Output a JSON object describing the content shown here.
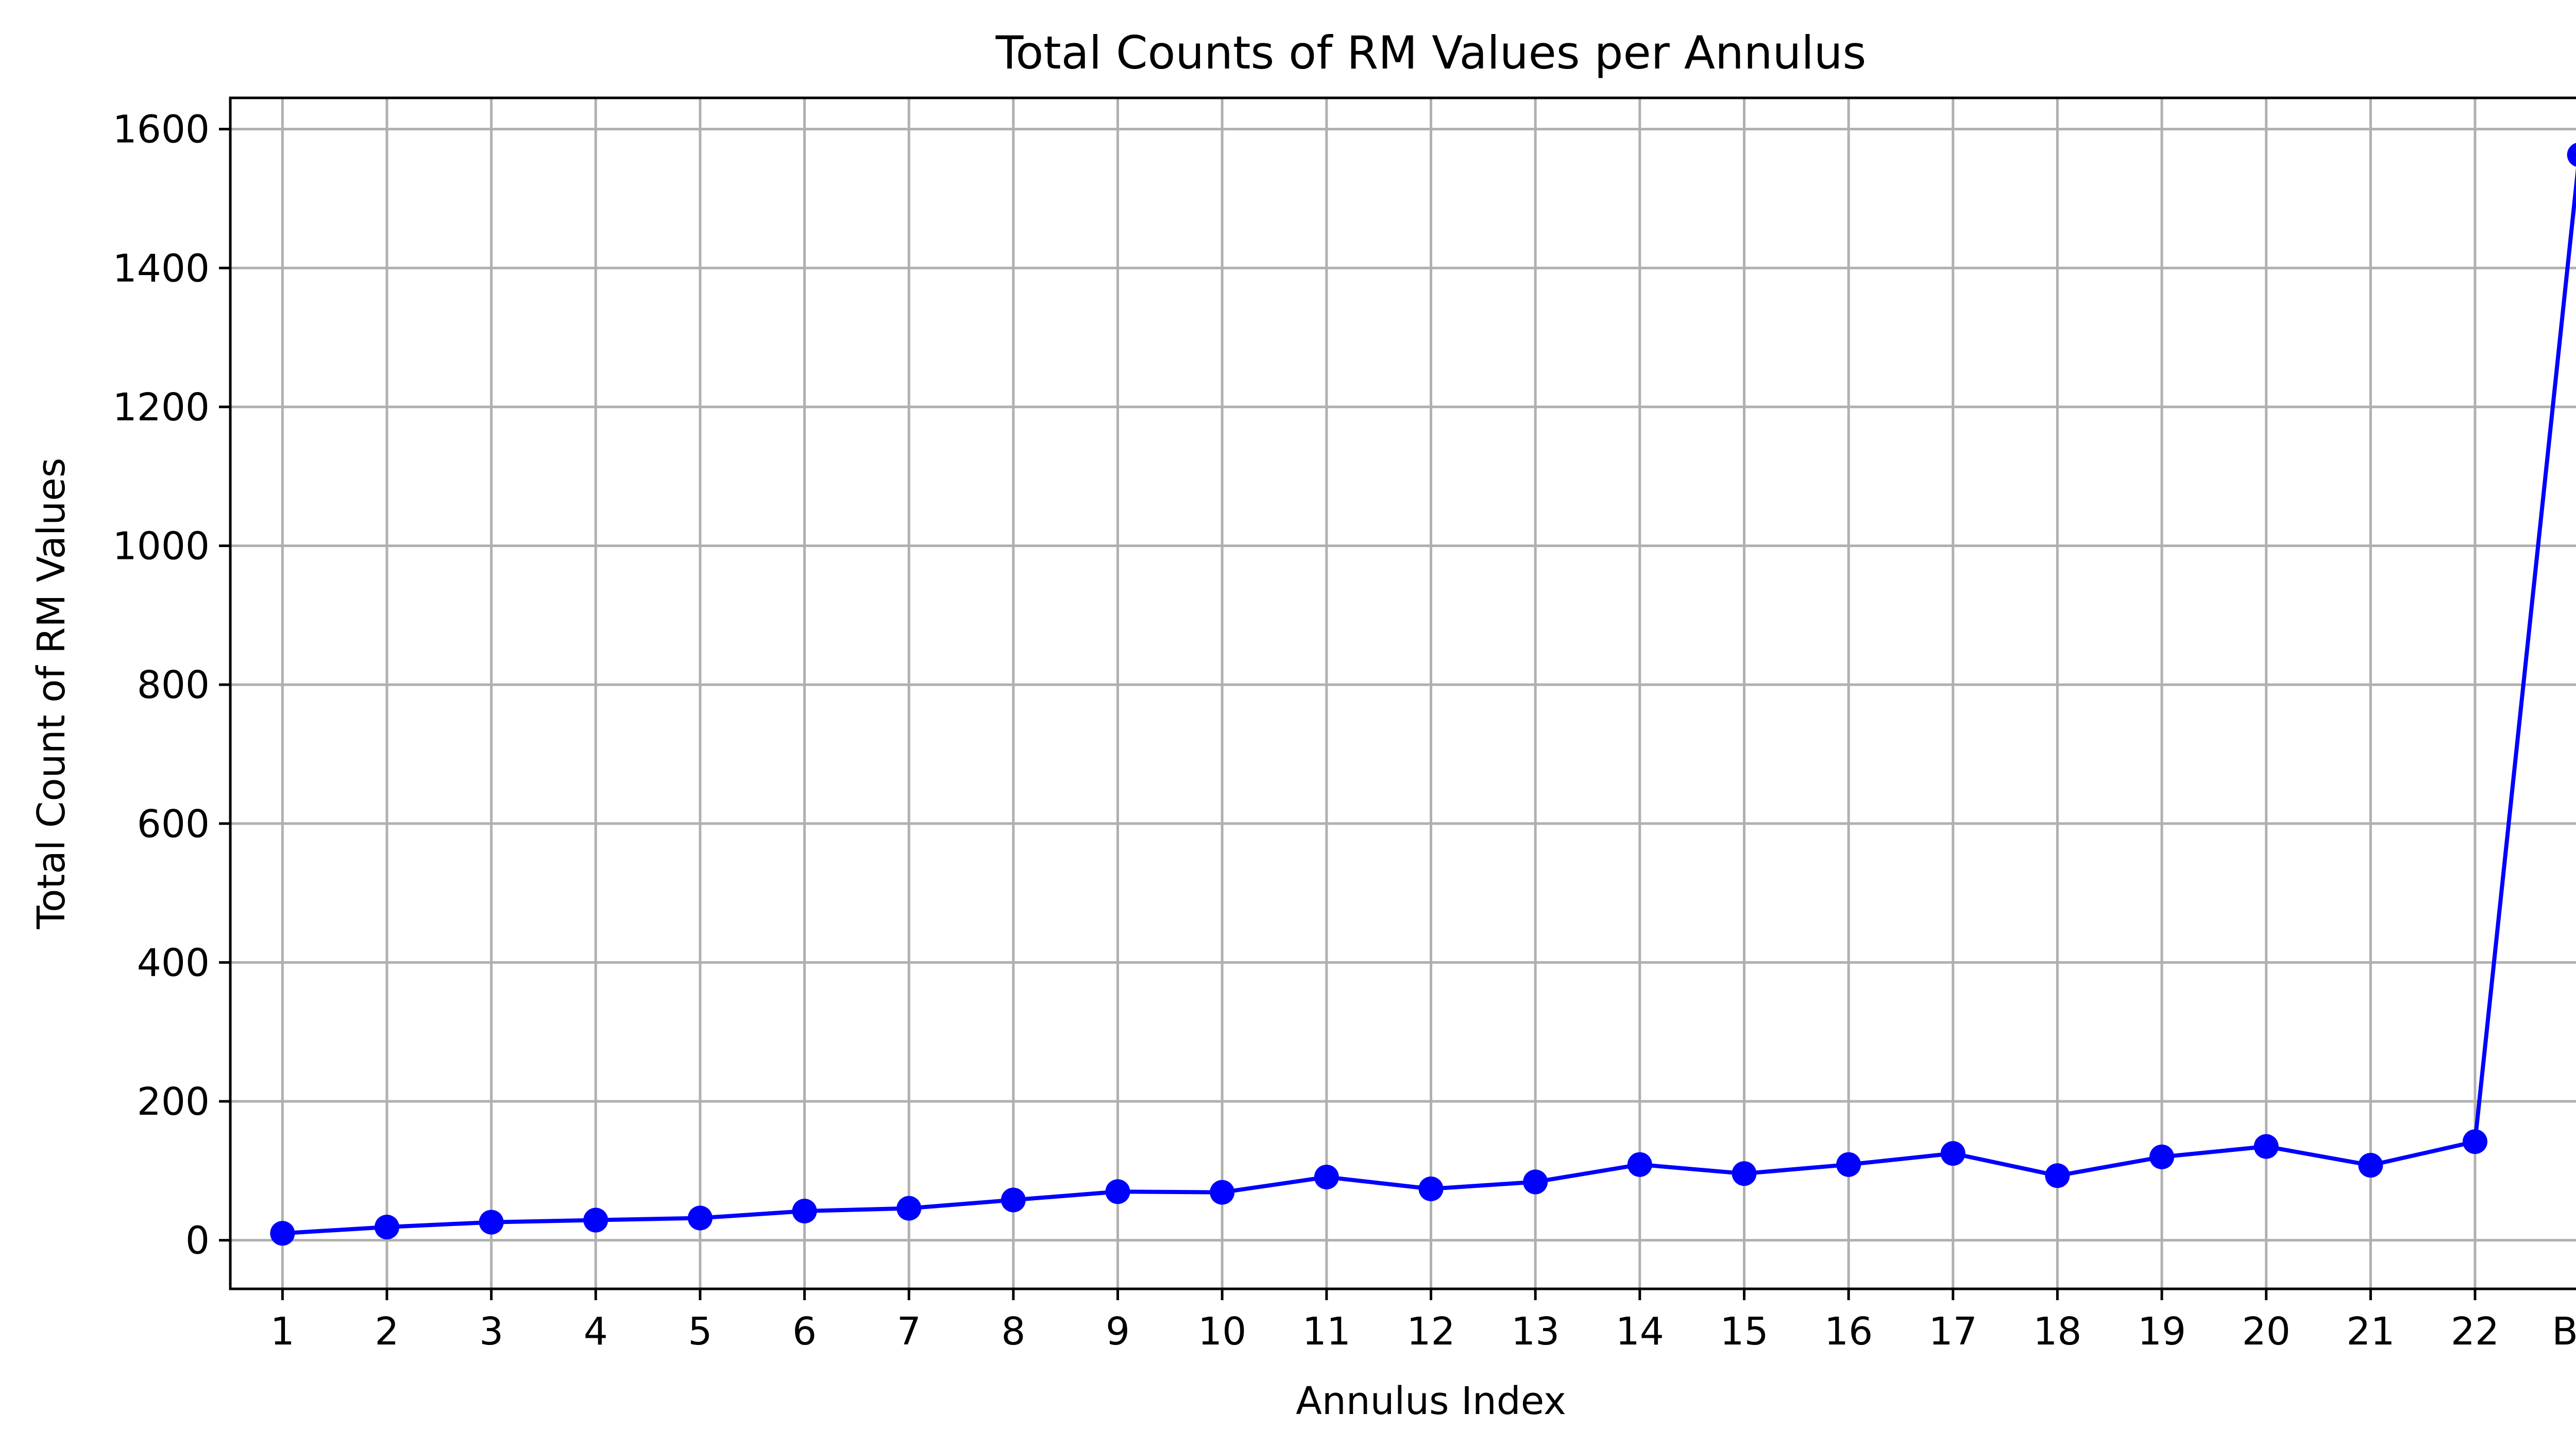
{
  "chart_data": {
    "type": "line",
    "title": "Total Counts of RM Values per Annulus",
    "xlabel": "Annulus Index",
    "ylabel": "Total Count of RM Values",
    "categories": [
      "1",
      "2",
      "3",
      "4",
      "5",
      "6",
      "7",
      "8",
      "9",
      "10",
      "11",
      "12",
      "13",
      "14",
      "15",
      "16",
      "17",
      "18",
      "19",
      "20",
      "21",
      "22",
      "BG"
    ],
    "series": [
      {
        "values": [
          10,
          19,
          26,
          29,
          32,
          42,
          46,
          58,
          70,
          69,
          91,
          74,
          84,
          109,
          96,
          109,
          125,
          93,
          120,
          135,
          108,
          142,
          1563
        ]
      }
    ],
    "ylim": [
      -70,
      1645
    ],
    "yticks": [
      0,
      200,
      400,
      600,
      800,
      1000,
      1200,
      1400,
      1600
    ],
    "grid": true,
    "colors": {
      "line": "#0000ff",
      "marker": "#0000ff",
      "grid": "#b0b0b0"
    },
    "marker": "circle"
  }
}
